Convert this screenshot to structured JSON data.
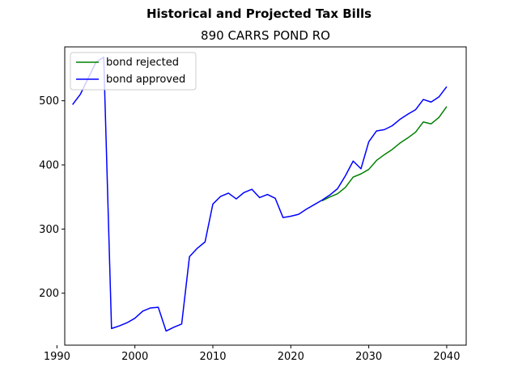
{
  "chart_data": {
    "type": "line",
    "suptitle": "Historical and Projected Tax Bills",
    "title": "890 CARRS POND RO",
    "xlabel": "",
    "ylabel": "",
    "xlim": [
      1991,
      2042.5
    ],
    "ylim": [
      119,
      584
    ],
    "xticks": [
      1990,
      2000,
      2010,
      2020,
      2030,
      2040
    ],
    "yticks": [
      200,
      300,
      400,
      500
    ],
    "grid": false,
    "legend_position": "top-left",
    "series": [
      {
        "name": "bond rejected",
        "color": "#008000",
        "x": [
          2024,
          2025,
          2026,
          2027,
          2028,
          2029,
          2030,
          2031,
          2032,
          2033,
          2034,
          2035,
          2036,
          2037,
          2038,
          2039,
          2040
        ],
        "y": [
          344,
          350,
          355,
          365,
          381,
          386,
          393,
          407,
          416,
          424,
          434,
          442,
          451,
          467,
          464,
          474,
          491
        ]
      },
      {
        "name": "bond approved",
        "color": "#0000ff",
        "x": [
          1992,
          1993,
          1994,
          1995,
          1996,
          1997,
          1998,
          1999,
          2000,
          2001,
          2002,
          2003,
          2004,
          2005,
          2006,
          2007,
          2008,
          2009,
          2010,
          2011,
          2012,
          2013,
          2014,
          2015,
          2016,
          2017,
          2018,
          2019,
          2020,
          2021,
          2022,
          2023,
          2024,
          2025,
          2026,
          2027,
          2028,
          2029,
          2030,
          2031,
          2032,
          2033,
          2034,
          2035,
          2036,
          2037,
          2038,
          2039,
          2040
        ],
        "y": [
          494,
          510,
          535,
          560,
          568,
          145,
          149,
          154,
          161,
          172,
          177,
          178,
          141,
          147,
          152,
          257,
          270,
          280,
          339,
          351,
          356,
          347,
          357,
          362,
          349,
          354,
          348,
          318,
          320,
          323,
          331,
          338,
          345,
          353,
          363,
          383,
          406,
          394,
          436,
          453,
          455,
          461,
          471,
          479,
          486,
          502,
          498,
          506,
          522
        ]
      }
    ]
  }
}
